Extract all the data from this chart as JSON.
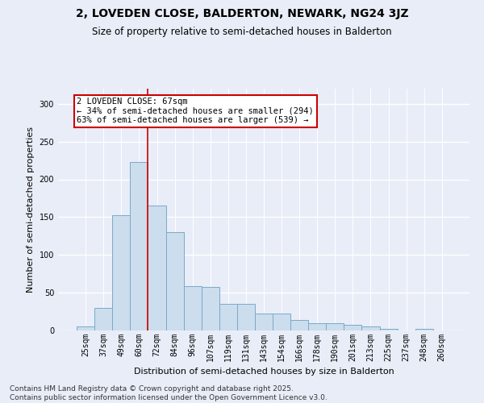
{
  "title": "2, LOVEDEN CLOSE, BALDERTON, NEWARK, NG24 3JZ",
  "subtitle": "Size of property relative to semi-detached houses in Balderton",
  "xlabel": "Distribution of semi-detached houses by size in Balderton",
  "ylabel": "Number of semi-detached properties",
  "categories": [
    "25sqm",
    "37sqm",
    "49sqm",
    "60sqm",
    "72sqm",
    "84sqm",
    "96sqm",
    "107sqm",
    "119sqm",
    "131sqm",
    "143sqm",
    "154sqm",
    "166sqm",
    "178sqm",
    "190sqm",
    "201sqm",
    "213sqm",
    "225sqm",
    "237sqm",
    "248sqm",
    "260sqm"
  ],
  "values": [
    5,
    30,
    153,
    223,
    165,
    130,
    59,
    58,
    35,
    35,
    22,
    22,
    14,
    10,
    10,
    7,
    5,
    2,
    0,
    2,
    0
  ],
  "bar_color": "#ccdded",
  "bar_edge_color": "#7aaac8",
  "highlight_index": 3,
  "highlight_line_color": "#cc0000",
  "annotation_text": "2 LOVEDEN CLOSE: 67sqm\n← 34% of semi-detached houses are smaller (294)\n63% of semi-detached houses are larger (539) →",
  "annotation_box_color": "#ffffff",
  "annotation_box_edge_color": "#cc0000",
  "footer_text": "Contains HM Land Registry data © Crown copyright and database right 2025.\nContains public sector information licensed under the Open Government Licence v3.0.",
  "ylim": [
    0,
    320
  ],
  "yticks": [
    0,
    50,
    100,
    150,
    200,
    250,
    300
  ],
  "bg_color": "#e8edf8",
  "grid_color": "#ffffff",
  "title_fontsize": 10,
  "subtitle_fontsize": 8.5,
  "tick_fontsize": 7,
  "ylabel_fontsize": 8,
  "xlabel_fontsize": 8,
  "footer_fontsize": 6.5,
  "annot_fontsize": 7.5
}
